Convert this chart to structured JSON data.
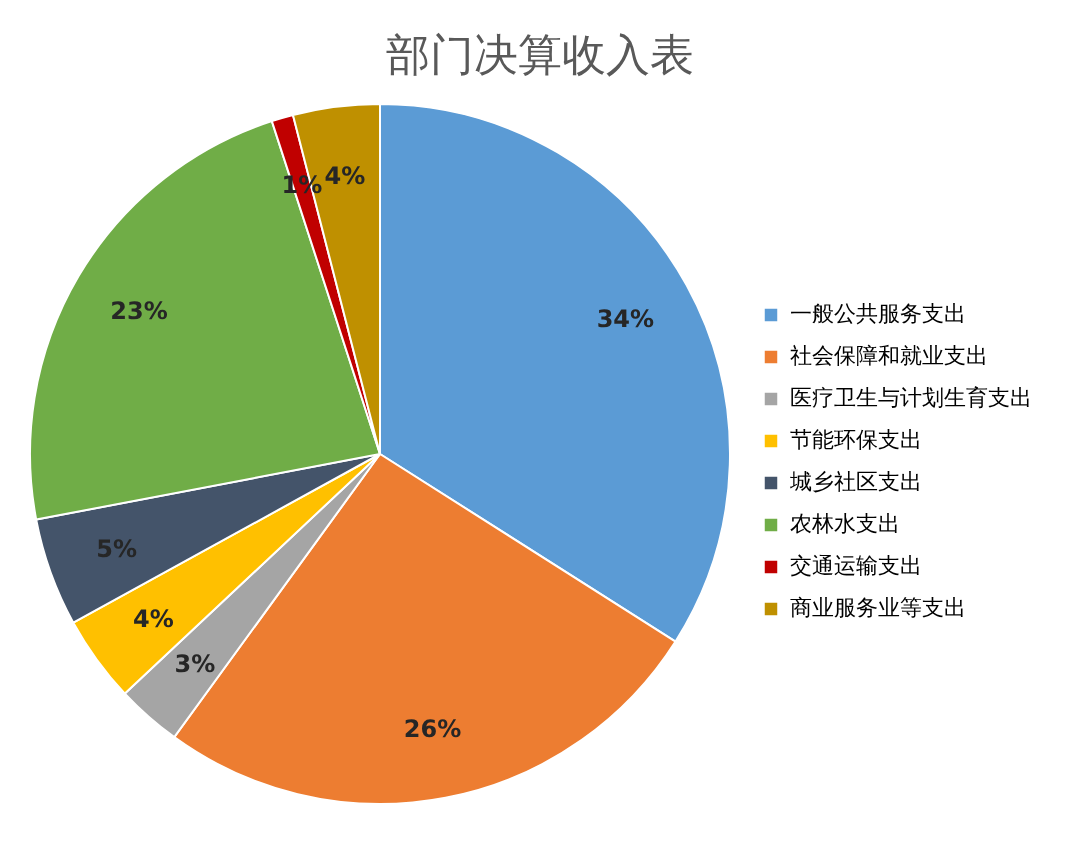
{
  "chart_data": {
    "type": "pie",
    "title": "部门决算收入表",
    "categories": [
      "一般公共服务支出",
      "社会保障和就业支出",
      "医疗卫生与计划生育支出",
      "节能环保支出",
      "城乡社区支出",
      "农林水支出",
      "交通运输支出",
      "商业服务业等支出"
    ],
    "values": [
      34,
      26,
      3,
      4,
      5,
      23,
      1,
      4
    ],
    "value_labels": [
      "34%",
      "26%",
      "3%",
      "4%",
      "5%",
      "23%",
      "1%",
      "4%"
    ],
    "colors": [
      "#5b9bd5",
      "#ed7d31",
      "#a5a5a5",
      "#ffc000",
      "#44546a",
      "#70ad47",
      "#c00000",
      "#bf9000"
    ],
    "legend": "right"
  }
}
